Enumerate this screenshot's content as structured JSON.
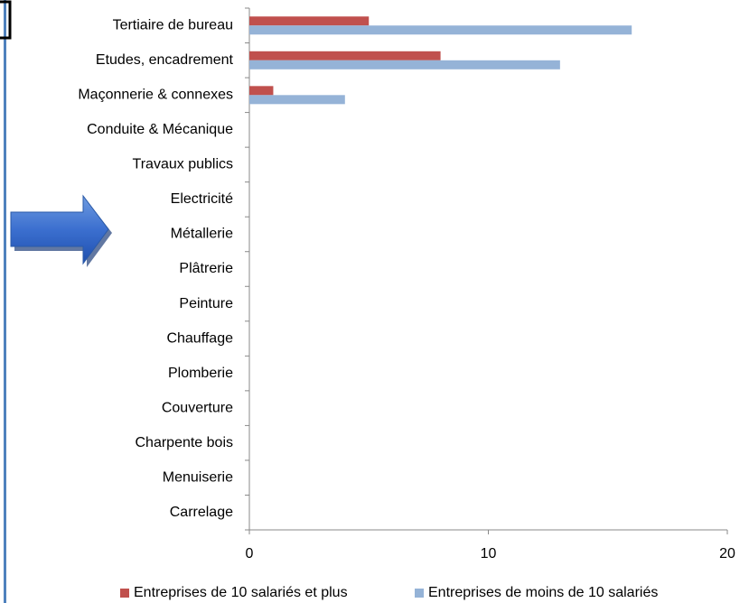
{
  "chart_data": {
    "type": "bar",
    "orientation": "horizontal",
    "categories": [
      "Tertiaire de bureau",
      "Etudes, encadrement",
      "Maçonnerie & connexes",
      "Conduite & Mécanique",
      "Travaux publics",
      "Electricité",
      "Métallerie",
      "Plâtrerie",
      "Peinture",
      "Chauffage",
      "Plomberie",
      "Couverture",
      "Charpente bois",
      "Menuiserie",
      "Carrelage"
    ],
    "series": [
      {
        "name": "Entreprises de 10 salariés et plus",
        "color": "#c0504d",
        "values": [
          5,
          8,
          1,
          0,
          0,
          0,
          0,
          0,
          0,
          0,
          0,
          0,
          0,
          0,
          0
        ]
      },
      {
        "name": "Entreprises de moins de 10 salariés",
        "color": "#95b3d7",
        "values": [
          16,
          13,
          4,
          0,
          0,
          0,
          0,
          0,
          0,
          0,
          0,
          0,
          0,
          0,
          0
        ]
      }
    ],
    "xlim": [
      0,
      20
    ],
    "xticks": [
      0,
      10,
      20
    ],
    "legend": "bottom"
  }
}
